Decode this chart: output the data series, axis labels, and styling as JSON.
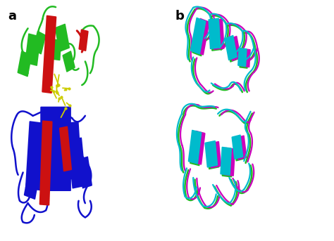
{
  "panel_a_label": "a",
  "panel_b_label": "b",
  "label_fontsize": 13,
  "label_fontweight": "bold",
  "label_color": "#000000",
  "background_color": "#ffffff",
  "fig_width": 4.74,
  "fig_height": 3.43,
  "dpi": 100,
  "image_b64": ""
}
